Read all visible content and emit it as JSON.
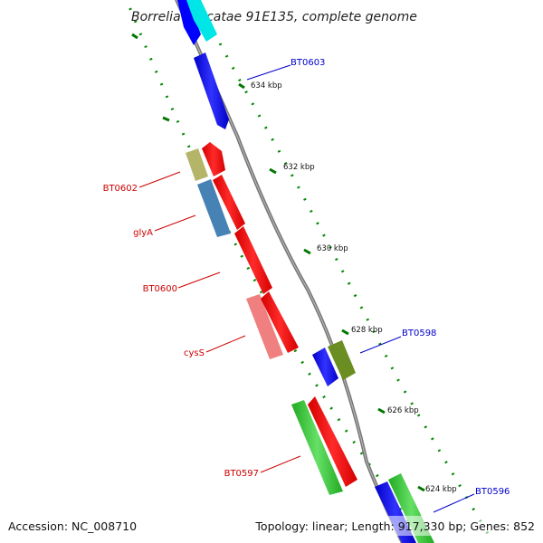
{
  "title": "Borrelia turicatae 91E135, complete genome",
  "footer": {
    "accession": "Accession: NC_008710",
    "summary": "Topology: linear; Length: 917,330 bp; Genes: 852"
  },
  "tick_labels": [
    "634 kbp",
    "632 kbp",
    "630 kbp",
    "628 kbp",
    "626 kbp",
    "624 kbp"
  ],
  "gene_labels": [
    {
      "text": "BT0603",
      "color": "#0000cc"
    },
    {
      "text": "BT0602",
      "color": "#cc0000"
    },
    {
      "text": "glyA",
      "color": "#cc0000"
    },
    {
      "text": "BT0600",
      "color": "#cc0000"
    },
    {
      "text": "cysS",
      "color": "#cc0000"
    },
    {
      "text": "BT0598",
      "color": "#0000cc"
    },
    {
      "text": "BT0597",
      "color": "#cc0000"
    },
    {
      "text": "BT0596",
      "color": "#0000cc"
    }
  ],
  "feature_colors": {
    "forward_cds": "#0000ff",
    "reverse_cds": "#ff0000",
    "cyan": "#00e5e5",
    "olive": "#6b8e23",
    "khaki": "#b5b56a",
    "steelblue": "#4682b4",
    "pink": "#f08080",
    "green": "#33cc33",
    "dark_green": "#228b22",
    "backbone": "#888888",
    "tick": "#007700"
  }
}
